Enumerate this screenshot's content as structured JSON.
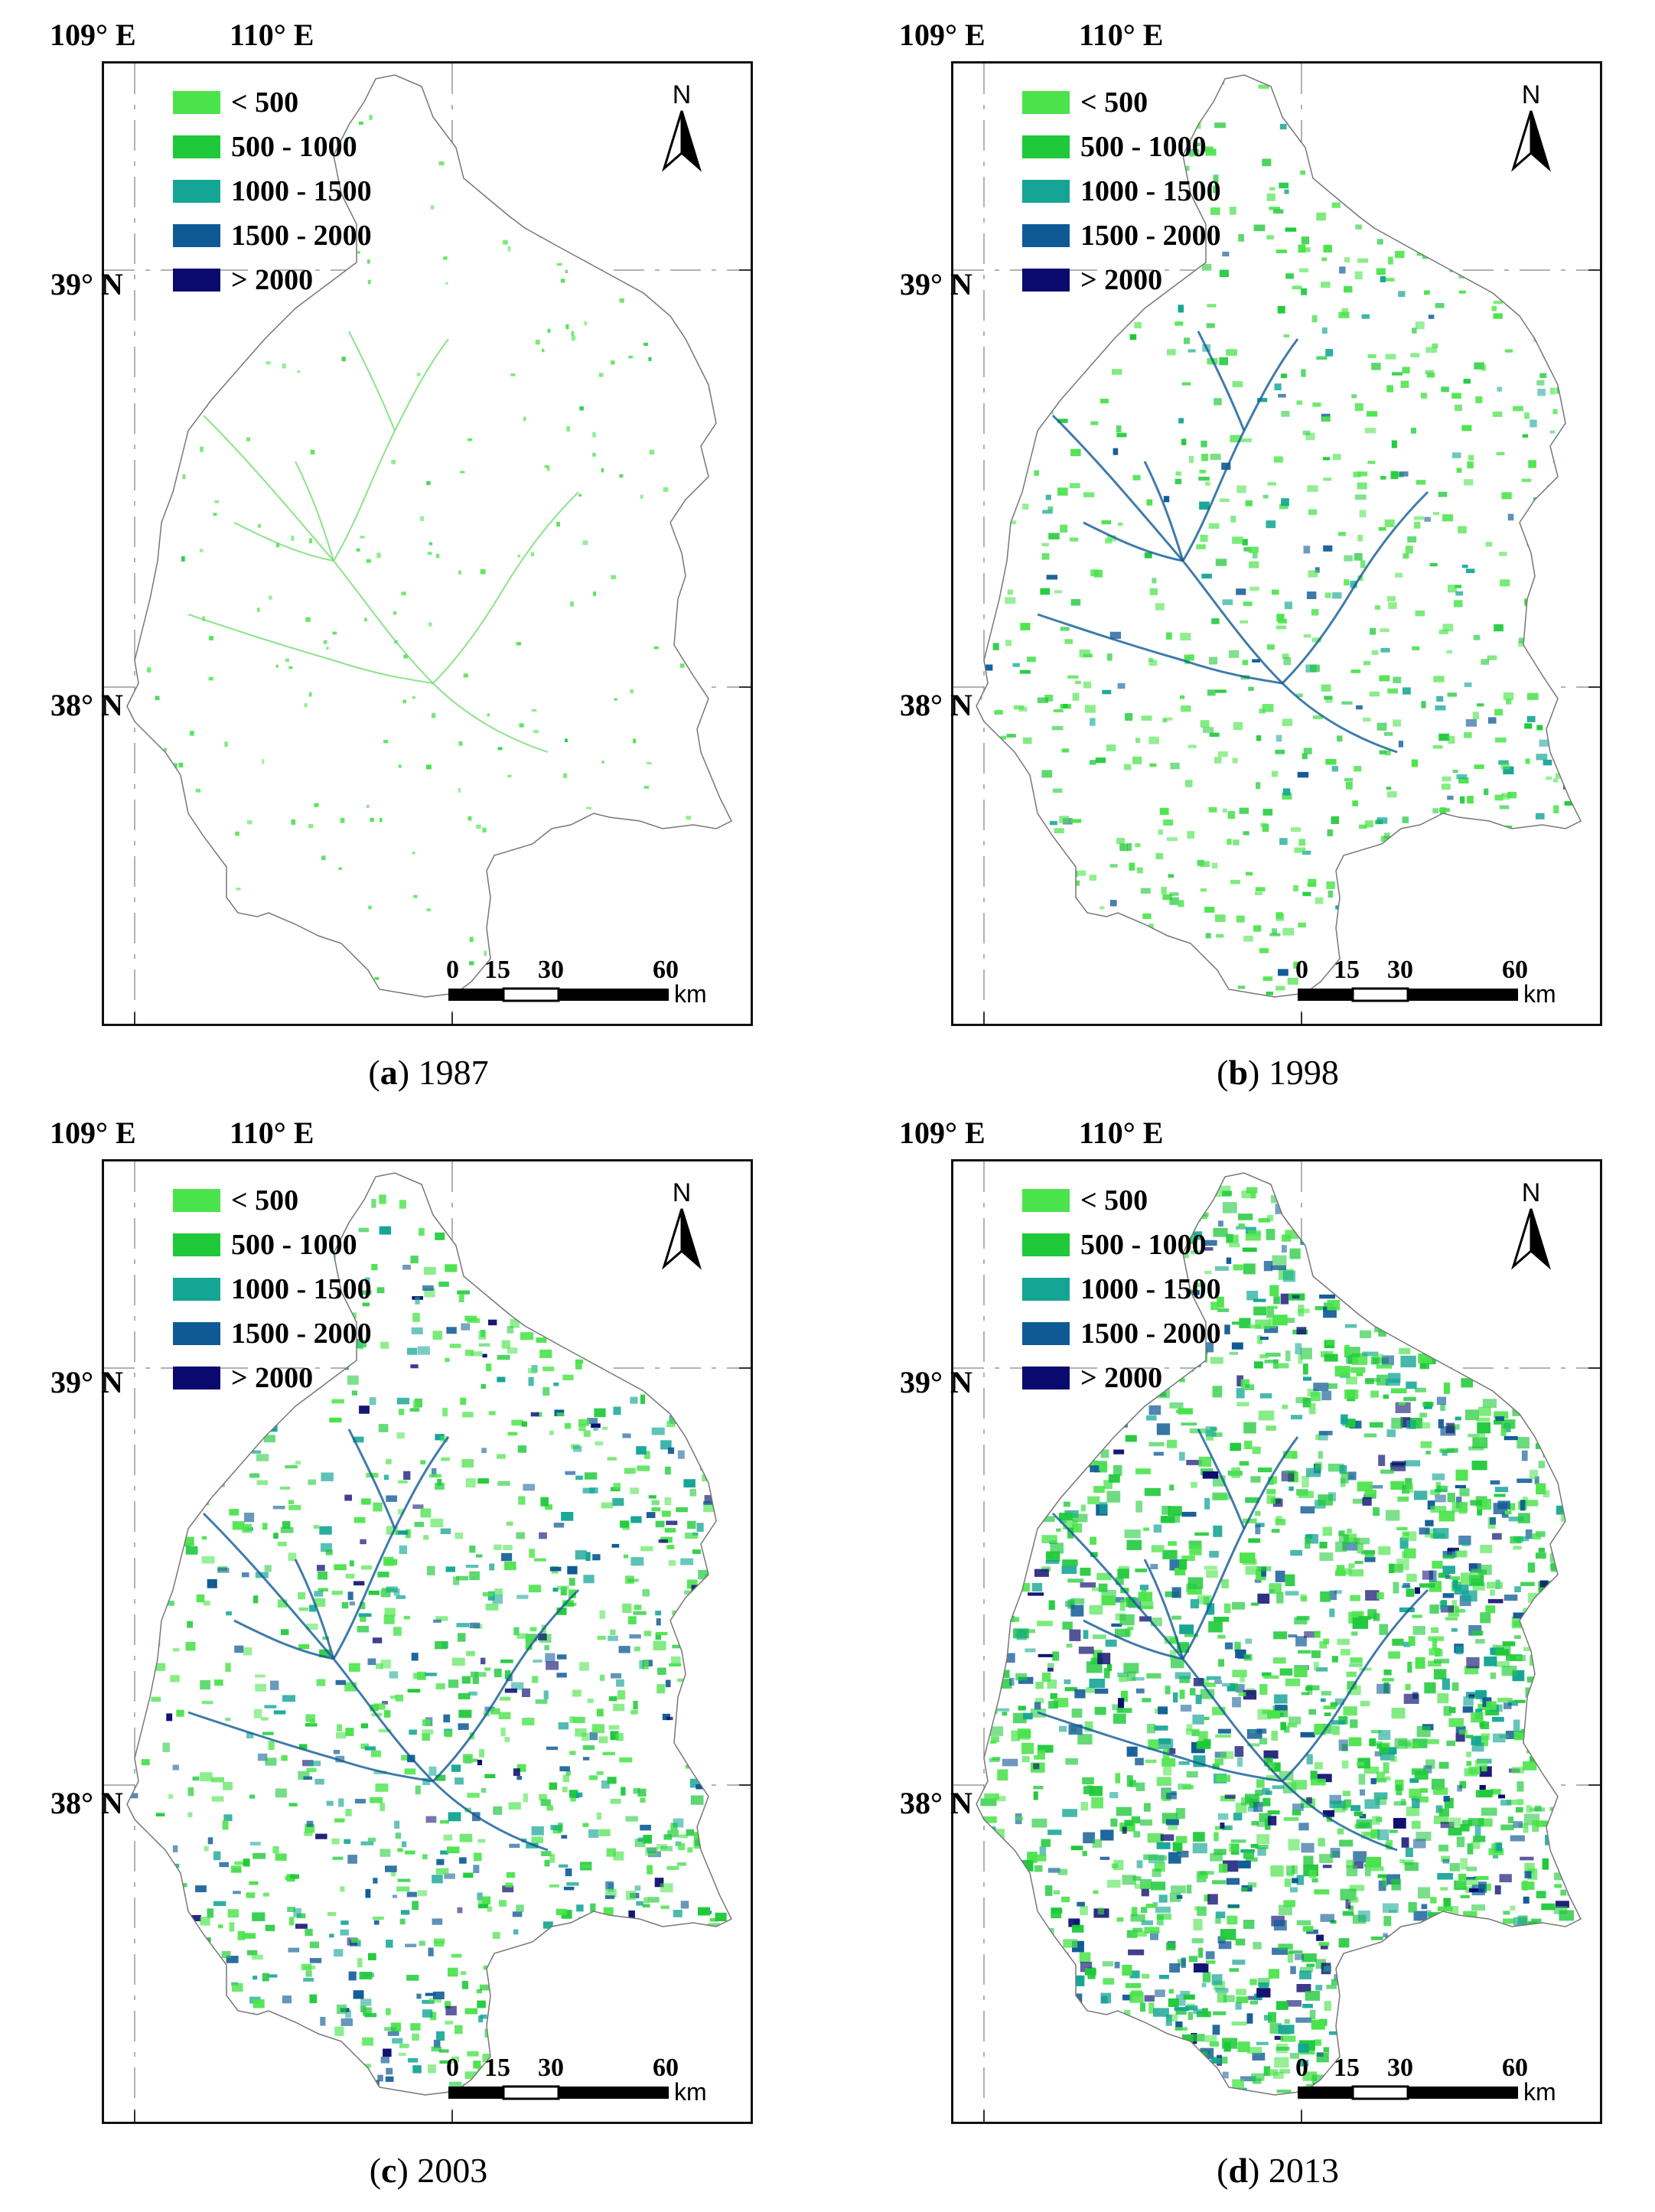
{
  "legend": [
    {
      "label": "< 500",
      "color": "#4be34b"
    },
    {
      "label": "500 - 1000",
      "color": "#1fc93a"
    },
    {
      "label": "1000 - 1500",
      "color": "#14a595"
    },
    {
      "label": "1500 - 2000",
      "color": "#0f5a95"
    },
    {
      "label": "> 2000",
      "color": "#0a0a6e"
    }
  ],
  "north_label": "N",
  "graticule": {
    "lon_labels": [
      "109° E",
      "110° E"
    ],
    "lat_labels": [
      "39° N",
      "38° N"
    ]
  },
  "scalebar": {
    "ticks": [
      "0",
      "15",
      "30",
      "60"
    ],
    "unit": "km"
  },
  "panels": [
    {
      "letter": "a",
      "year": "1987",
      "density": 0.25
    },
    {
      "letter": "b",
      "year": "1998",
      "density": 0.55
    },
    {
      "letter": "c",
      "year": "2003",
      "density": 0.7
    },
    {
      "letter": "d",
      "year": "2013",
      "density": 0.95
    }
  ]
}
